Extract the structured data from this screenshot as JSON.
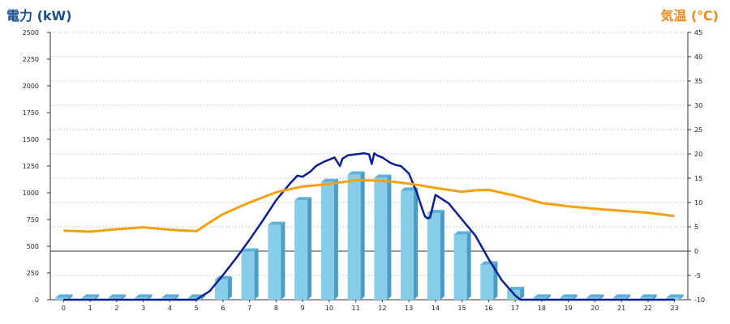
{
  "chart_data": {
    "type": "bar",
    "title_left": "電力 (kW)",
    "title_right": "気温 (℃)",
    "categories": [
      "0",
      "1",
      "2",
      "3",
      "4",
      "5",
      "6",
      "7",
      "8",
      "9",
      "10",
      "11",
      "12",
      "13",
      "14",
      "15",
      "16",
      "17",
      "18",
      "19",
      "20",
      "21",
      "22",
      "23"
    ],
    "y_left": {
      "min": 0,
      "max": 2500,
      "ticks": [
        0,
        250,
        500,
        750,
        1000,
        1250,
        1500,
        1750,
        2000,
        2250,
        2500
      ]
    },
    "y_right": {
      "min": -10,
      "max": 45,
      "ticks": [
        -10,
        -5,
        0,
        5,
        10,
        15,
        20,
        25,
        30,
        35,
        40,
        45
      ]
    },
    "grid": true,
    "series": [
      {
        "kind": "bar",
        "axis": "left",
        "color": "#87cde9",
        "values": [
          0,
          0,
          0,
          0,
          0,
          0,
          190,
          450,
          700,
          930,
          1100,
          1170,
          1140,
          1020,
          810,
          610,
          330,
          90,
          0,
          0,
          0,
          0,
          0,
          0
        ]
      },
      {
        "kind": "line",
        "axis": "left",
        "color": "#0a1f8f",
        "x": [
          0,
          5,
          5.5,
          6,
          6.5,
          7,
          7.5,
          8,
          8.5,
          8.8,
          9,
          9.3,
          9.5,
          9.8,
          10,
          10.2,
          10.4,
          10.5,
          10.7,
          11,
          11.3,
          11.5,
          11.6,
          11.7,
          11.8,
          12,
          12.3,
          12.5,
          12.7,
          13,
          13.3,
          13.5,
          13.6,
          13.7,
          13.8,
          14,
          14.5,
          15,
          15.5,
          16,
          16.5,
          17,
          17.2,
          23
        ],
        "values": [
          0,
          0,
          80,
          230,
          390,
          560,
          740,
          930,
          1080,
          1160,
          1150,
          1200,
          1250,
          1290,
          1310,
          1330,
          1250,
          1320,
          1350,
          1360,
          1370,
          1360,
          1270,
          1370,
          1350,
          1330,
          1280,
          1260,
          1250,
          1180,
          1000,
          850,
          780,
          760,
          770,
          980,
          900,
          750,
          600,
          380,
          180,
          40,
          0,
          0
        ]
      },
      {
        "kind": "line",
        "axis": "right",
        "color": "#f5a010",
        "x": [
          0,
          1,
          2,
          3,
          4,
          5,
          5.5,
          6,
          7,
          8,
          9,
          10,
          10.5,
          11,
          12,
          13,
          14,
          15,
          15.5,
          16,
          17,
          18,
          19,
          20,
          21,
          22,
          23
        ],
        "values": [
          4.2,
          4.0,
          4.5,
          4.9,
          4.4,
          4.1,
          5.9,
          7.6,
          10.0,
          12.1,
          13.3,
          13.8,
          14.2,
          14.6,
          14.5,
          13.9,
          13.0,
          12.2,
          12.5,
          12.6,
          11.4,
          9.9,
          9.2,
          8.7,
          8.3,
          7.9,
          7.2
        ]
      }
    ]
  }
}
